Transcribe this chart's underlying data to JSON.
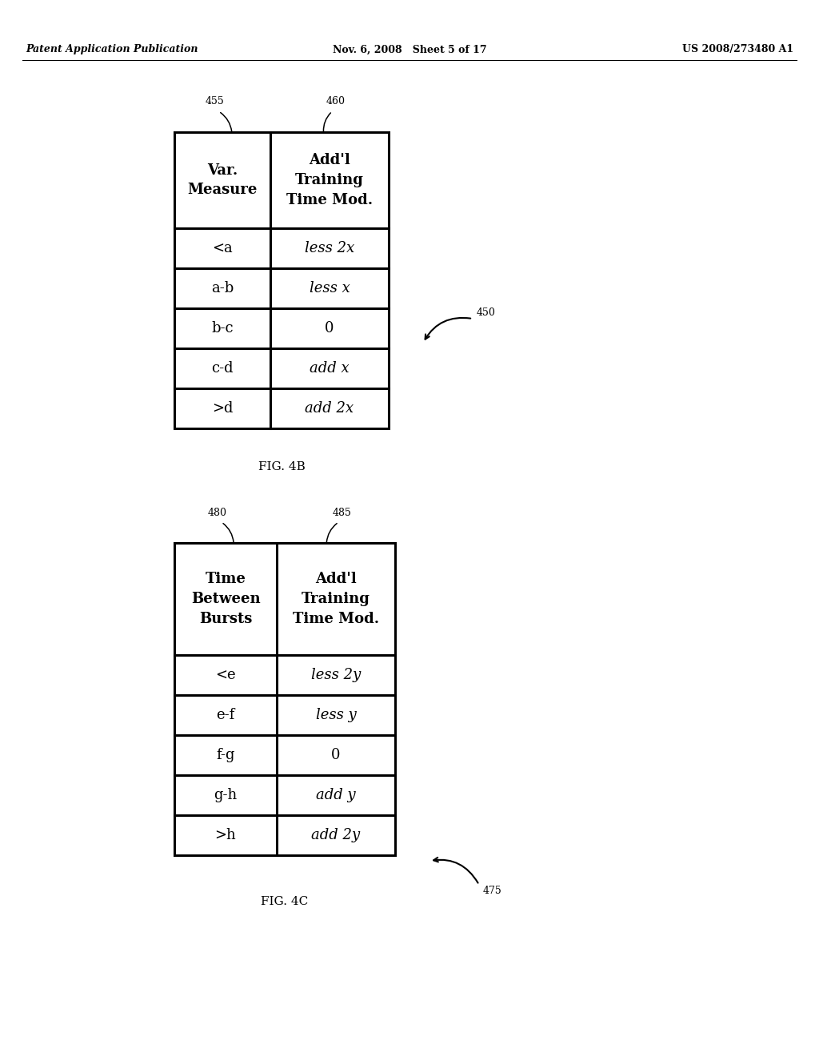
{
  "bg_color": "#ffffff",
  "page_header": {
    "left": "Patent Application Publication",
    "center": "Nov. 6, 2008   Sheet 5 of 17",
    "right": "US 2008/273480 A1"
  },
  "table1": {
    "label": "FIG. 4B",
    "ref_label1": "455",
    "ref_label2": "460",
    "ref_label_arrow": "450",
    "col1_header": "Var.\nMeasure",
    "col2_header": "Add'l\nTraining\nTime Mod.",
    "rows": [
      [
        "<a",
        "less 2x"
      ],
      [
        "a-b",
        "less x"
      ],
      [
        "b-c",
        "0"
      ],
      [
        "c-d",
        "add x"
      ],
      [
        ">d",
        "add 2x"
      ]
    ]
  },
  "table2": {
    "label": "FIG. 4C",
    "ref_label1": "480",
    "ref_label2": "485",
    "ref_label_arrow": "475",
    "col1_header": "Time\nBetween\nBursts",
    "col2_header": "Add'l\nTraining\nTime Mod.",
    "rows": [
      [
        "<e",
        "less 2y"
      ],
      [
        "e-f",
        "less y"
      ],
      [
        "f-g",
        "0"
      ],
      [
        "g-h",
        "add y"
      ],
      [
        ">h",
        "add 2y"
      ]
    ]
  }
}
